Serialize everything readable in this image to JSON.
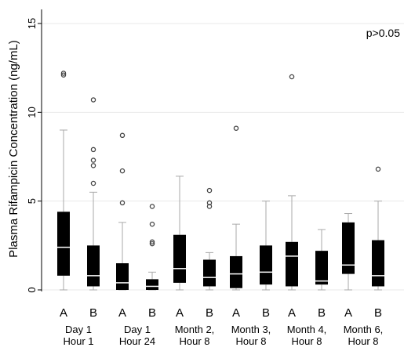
{
  "chart_data": {
    "type": "boxplot",
    "ylabel": "Plasma Rifampicin Concentration (ng/mL)",
    "ylim": [
      0,
      15
    ],
    "yticks": [
      0,
      5,
      10,
      15
    ],
    "grid": "horizontal",
    "annotation": "p>0.05",
    "groups": [
      {
        "label_line1": "Day 1",
        "label_line2": "Hour 1",
        "boxes": [
          {
            "name": "A",
            "whisker_low": 0,
            "q1": 0.8,
            "median": 2.4,
            "q3": 4.4,
            "whisker_high": 9.0,
            "outliers": [
              12.1,
              12.2
            ]
          },
          {
            "name": "B",
            "whisker_low": 0,
            "q1": 0.2,
            "median": 0.8,
            "q3": 2.5,
            "whisker_high": 5.5,
            "outliers": [
              6.0,
              7.0,
              7.3,
              7.9,
              10.7
            ]
          }
        ]
      },
      {
        "label_line1": "Day 1",
        "label_line2": "Hour 24",
        "boxes": [
          {
            "name": "A",
            "whisker_low": 0,
            "q1": 0.0,
            "median": 0.4,
            "q3": 1.5,
            "whisker_high": 3.8,
            "outliers": [
              4.9,
              6.7,
              8.7
            ]
          },
          {
            "name": "B",
            "whisker_low": 0,
            "q1": 0.0,
            "median": 0.2,
            "q3": 0.6,
            "whisker_high": 1.0,
            "outliers": [
              2.6,
              2.7,
              3.7,
              4.7
            ]
          }
        ]
      },
      {
        "label_line1": "Month 2,",
        "label_line2": "Hour 8",
        "boxes": [
          {
            "name": "A",
            "whisker_low": 0,
            "q1": 0.4,
            "median": 1.2,
            "q3": 3.1,
            "whisker_high": 6.4,
            "outliers": []
          },
          {
            "name": "B",
            "whisker_low": 0,
            "q1": 0.2,
            "median": 0.7,
            "q3": 1.7,
            "whisker_high": 2.1,
            "outliers": [
              4.7,
              4.9,
              5.6
            ]
          }
        ]
      },
      {
        "label_line1": "Month 3,",
        "label_line2": "Hour 8",
        "boxes": [
          {
            "name": "A",
            "whisker_low": 0,
            "q1": 0.1,
            "median": 0.9,
            "q3": 1.9,
            "whisker_high": 3.7,
            "outliers": [
              9.1
            ]
          },
          {
            "name": "B",
            "whisker_low": 0,
            "q1": 0.3,
            "median": 1.0,
            "q3": 2.5,
            "whisker_high": 5.0,
            "outliers": []
          }
        ]
      },
      {
        "label_line1": "Month 4,",
        "label_line2": "Hour 8",
        "boxes": [
          {
            "name": "A",
            "whisker_low": 0,
            "q1": 0.2,
            "median": 1.9,
            "q3": 2.7,
            "whisker_high": 5.3,
            "outliers": [
              12.0
            ]
          },
          {
            "name": "B",
            "whisker_low": 0,
            "q1": 0.3,
            "median": 0.5,
            "q3": 2.2,
            "whisker_high": 3.4,
            "outliers": []
          }
        ]
      },
      {
        "label_line1": "Month 6,",
        "label_line2": "Hour 8",
        "boxes": [
          {
            "name": "A",
            "whisker_low": 0,
            "q1": 0.9,
            "median": 1.4,
            "q3": 3.8,
            "whisker_high": 4.3,
            "outliers": []
          },
          {
            "name": "B",
            "whisker_low": 0,
            "q1": 0.2,
            "median": 0.8,
            "q3": 2.8,
            "whisker_high": 5.0,
            "outliers": [
              6.8
            ]
          }
        ]
      }
    ]
  },
  "colors": {
    "box": "#000000",
    "median": "#ffffff",
    "whisker": "#aaaaaa",
    "grid": "#e8e8e8",
    "axis": "#000000"
  }
}
